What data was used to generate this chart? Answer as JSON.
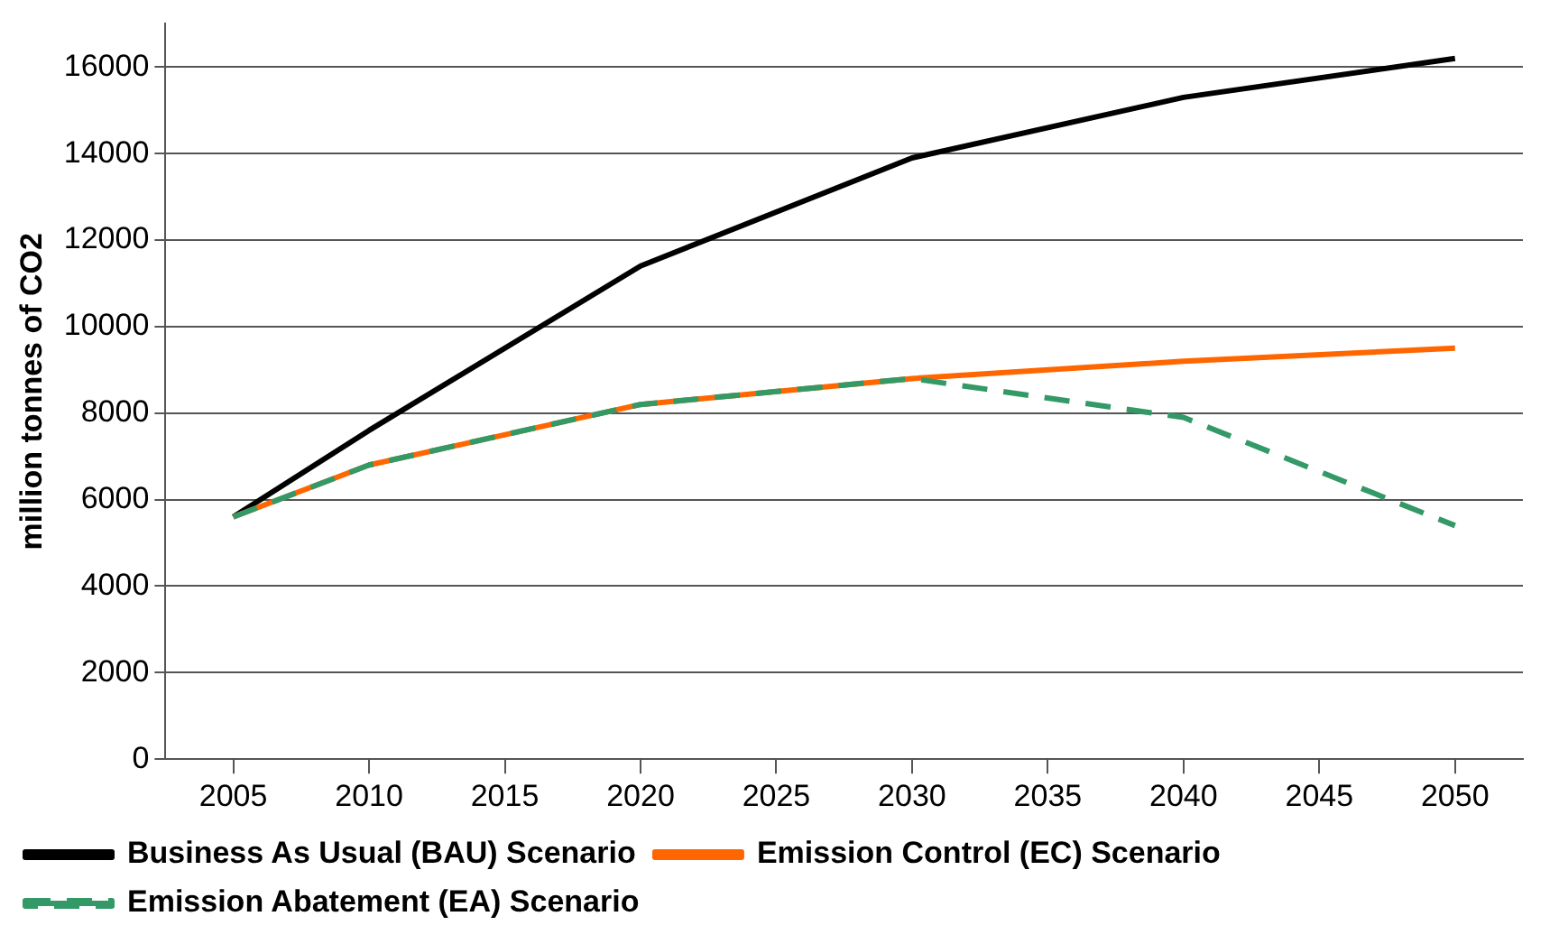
{
  "chart_data": {
    "type": "line",
    "ylabel": "million tonnes of CO2",
    "categories": [
      "2005",
      "2010",
      "2015",
      "2020",
      "2025",
      "2030",
      "2035",
      "2040",
      "2045",
      "2050"
    ],
    "series": [
      {
        "name": "Business As Usual (BAU) Scenario",
        "color": "#000000",
        "line_style": "solid",
        "values": [
          5600,
          7600,
          null,
          11400,
          null,
          13900,
          null,
          15300,
          null,
          16200
        ]
      },
      {
        "name": "Emission Control (EC) Scenario",
        "color": "#ff6600",
        "line_style": "solid",
        "values": [
          5600,
          6800,
          null,
          8200,
          null,
          8800,
          null,
          9200,
          null,
          9500
        ]
      },
      {
        "name": "Emission Abatement (EA) Scenario",
        "color": "#339966",
        "line_style": "dashed",
        "values": [
          5600,
          6800,
          null,
          8200,
          null,
          8800,
          null,
          7900,
          null,
          5400
        ]
      }
    ],
    "ylim": [
      0,
      17000
    ],
    "yticks": [
      0,
      2000,
      4000,
      6000,
      8000,
      10000,
      12000,
      14000,
      16000
    ],
    "grid": "y",
    "legend": "bottom",
    "marker": "none"
  }
}
